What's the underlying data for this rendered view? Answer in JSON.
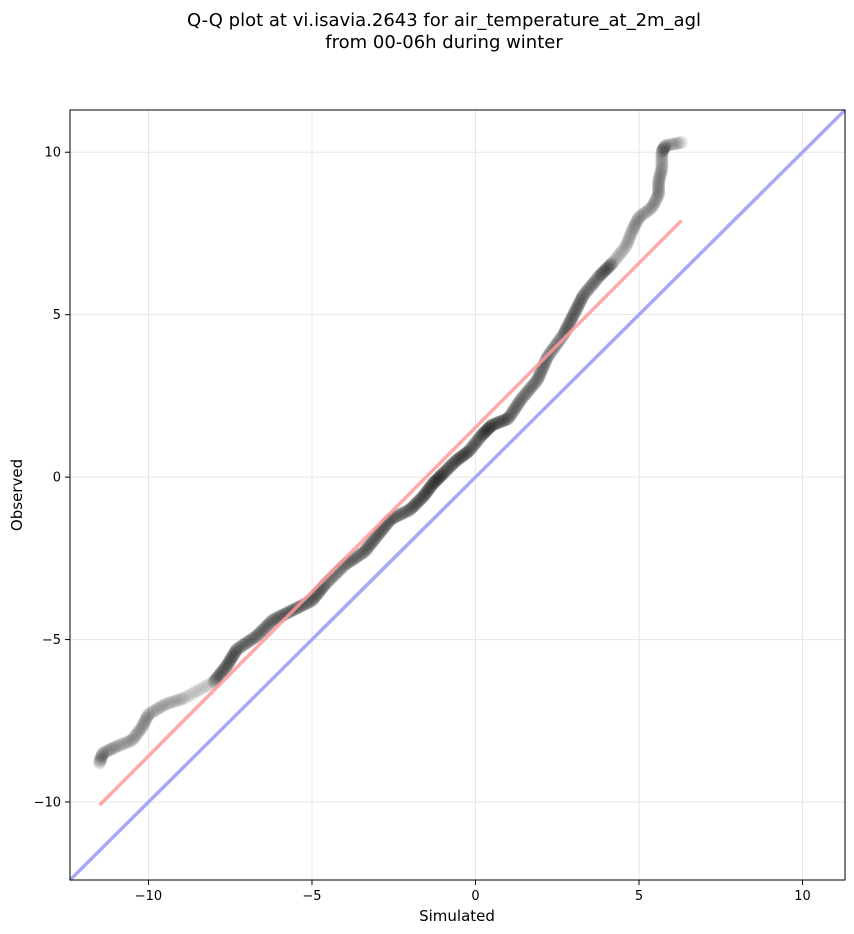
{
  "chart_data": {
    "type": "scatter",
    "title_line1": "Q-Q plot at vi.isavia.2643 for air_temperature_at_2m_agl",
    "title_line2": "from 00-06h during winter",
    "xlabel": "Simulated",
    "ylabel": "Observed",
    "xlim": [
      -12.4,
      11.3
    ],
    "ylim": [
      -12.4,
      11.3
    ],
    "xticks": [
      -10,
      -5,
      0,
      5,
      10
    ],
    "yticks": [
      -10,
      -5,
      0,
      5,
      10
    ],
    "tick_labels": [
      "−10",
      "−5",
      "0",
      "5",
      "10"
    ],
    "grid": true,
    "quantile_curve": [
      {
        "x": -11.5,
        "y": -8.8
      },
      {
        "x": -11.4,
        "y": -8.5
      },
      {
        "x": -11.0,
        "y": -8.3
      },
      {
        "x": -10.5,
        "y": -8.1
      },
      {
        "x": -10.2,
        "y": -7.7
      },
      {
        "x": -10.0,
        "y": -7.3
      },
      {
        "x": -9.5,
        "y": -7.0
      },
      {
        "x": -8.9,
        "y": -6.8
      },
      {
        "x": -8.0,
        "y": -6.3
      },
      {
        "x": -7.6,
        "y": -5.8
      },
      {
        "x": -7.3,
        "y": -5.3
      },
      {
        "x": -6.7,
        "y": -4.9
      },
      {
        "x": -6.2,
        "y": -4.4
      },
      {
        "x": -5.6,
        "y": -4.1
      },
      {
        "x": -5.0,
        "y": -3.8
      },
      {
        "x": -4.6,
        "y": -3.3
      },
      {
        "x": -4.0,
        "y": -2.7
      },
      {
        "x": -3.4,
        "y": -2.3
      },
      {
        "x": -3.0,
        "y": -1.8
      },
      {
        "x": -2.6,
        "y": -1.3
      },
      {
        "x": -2.0,
        "y": -1.0
      },
      {
        "x": -1.6,
        "y": -0.6
      },
      {
        "x": -1.3,
        "y": -0.2
      },
      {
        "x": -1.0,
        "y": 0.1
      },
      {
        "x": -0.6,
        "y": 0.5
      },
      {
        "x": -0.2,
        "y": 0.8
      },
      {
        "x": 0.2,
        "y": 1.3
      },
      {
        "x": 0.5,
        "y": 1.6
      },
      {
        "x": 1.0,
        "y": 1.8
      },
      {
        "x": 1.4,
        "y": 2.4
      },
      {
        "x": 1.9,
        "y": 3.0
      },
      {
        "x": 2.2,
        "y": 3.7
      },
      {
        "x": 2.7,
        "y": 4.4
      },
      {
        "x": 3.0,
        "y": 5.0
      },
      {
        "x": 3.3,
        "y": 5.6
      },
      {
        "x": 3.8,
        "y": 6.2
      },
      {
        "x": 4.2,
        "y": 6.6
      },
      {
        "x": 4.6,
        "y": 7.1
      },
      {
        "x": 4.8,
        "y": 7.6
      },
      {
        "x": 5.0,
        "y": 8.0
      },
      {
        "x": 5.4,
        "y": 8.3
      },
      {
        "x": 5.6,
        "y": 8.7
      },
      {
        "x": 5.6,
        "y": 9.1
      },
      {
        "x": 5.7,
        "y": 9.5
      },
      {
        "x": 5.7,
        "y": 10.0
      },
      {
        "x": 5.8,
        "y": 10.2
      },
      {
        "x": 6.3,
        "y": 10.3
      }
    ],
    "fit_line": {
      "x1": -11.5,
      "y1": -10.1,
      "x2": 6.3,
      "y2": 7.9,
      "color": "#ff9a9a"
    },
    "identity_line": {
      "color": "#a8a8f7"
    },
    "point_color": "#000000"
  }
}
